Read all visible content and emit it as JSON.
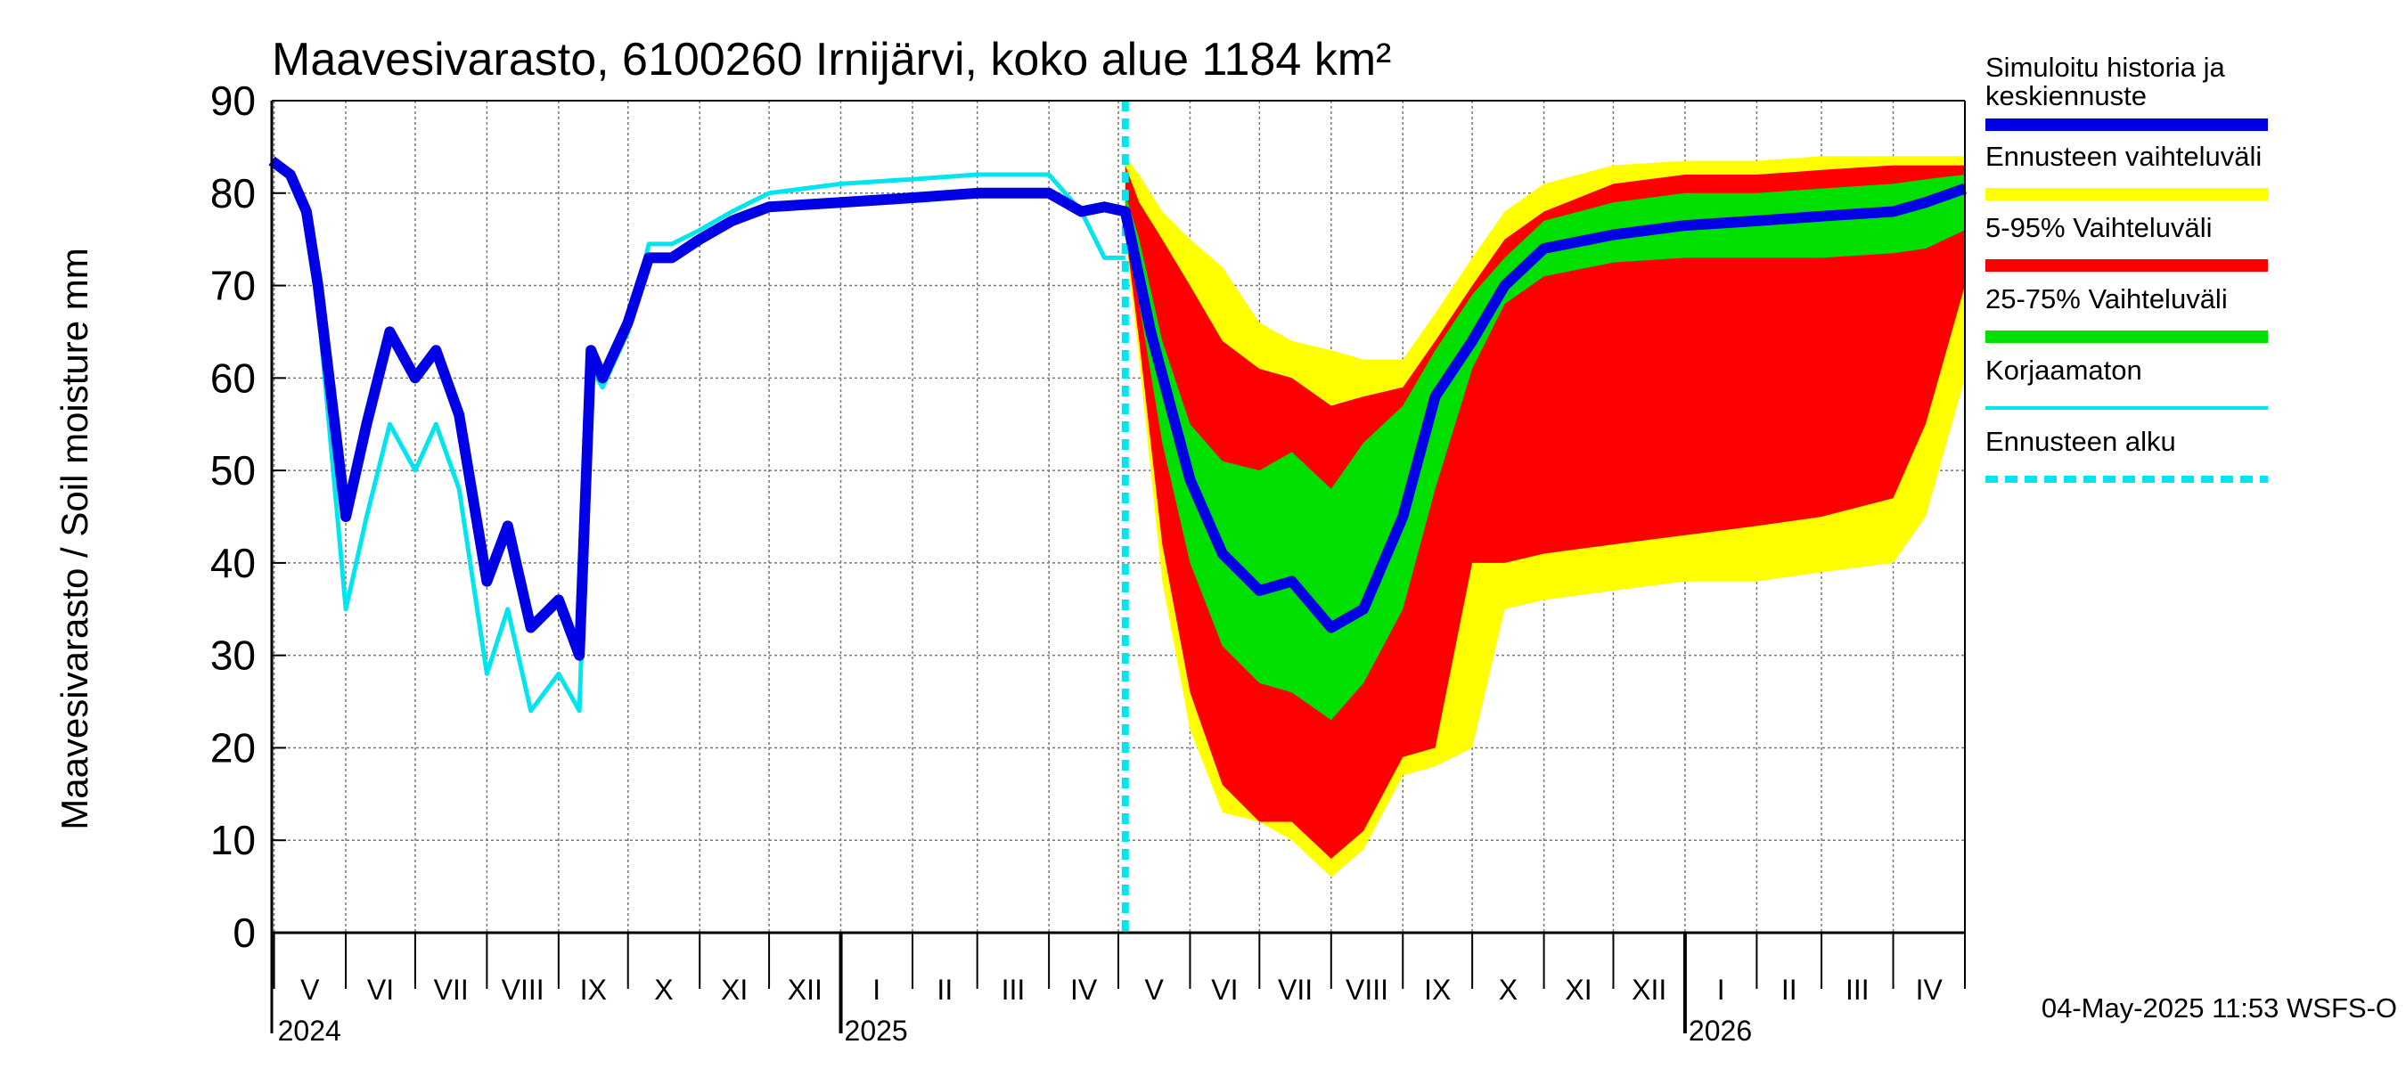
{
  "chart_data": {
    "type": "area",
    "title": "Maavesivarasto, 6100260 Irnijärvi, koko alue 1184 km²",
    "ylabel": "Maavesivarasto / Soil moisture   mm",
    "ylim": [
      0,
      90
    ],
    "yticks": [
      0,
      10,
      20,
      30,
      40,
      50,
      60,
      70,
      80,
      90
    ],
    "xlim": [
      "2024-04-30",
      "2026-05-02"
    ],
    "grid": true,
    "forecast_start": "2025-05-04",
    "months": [
      {
        "label": "V",
        "start": "2024-05-01"
      },
      {
        "label": "VI",
        "start": "2024-06-01"
      },
      {
        "label": "VII",
        "start": "2024-07-01"
      },
      {
        "label": "VIII",
        "start": "2024-08-01"
      },
      {
        "label": "IX",
        "start": "2024-09-01"
      },
      {
        "label": "X",
        "start": "2024-10-01"
      },
      {
        "label": "XI",
        "start": "2024-11-01"
      },
      {
        "label": "XII",
        "start": "2024-12-01"
      },
      {
        "label": "I",
        "start": "2025-01-01"
      },
      {
        "label": "II",
        "start": "2025-02-01"
      },
      {
        "label": "III",
        "start": "2025-03-01"
      },
      {
        "label": "IV",
        "start": "2025-04-01"
      },
      {
        "label": "V",
        "start": "2025-05-01"
      },
      {
        "label": "VI",
        "start": "2025-06-01"
      },
      {
        "label": "VII",
        "start": "2025-07-01"
      },
      {
        "label": "VIII",
        "start": "2025-08-01"
      },
      {
        "label": "IX",
        "start": "2025-09-01"
      },
      {
        "label": "X",
        "start": "2025-10-01"
      },
      {
        "label": "XI",
        "start": "2025-11-01"
      },
      {
        "label": "XII",
        "start": "2025-12-01"
      },
      {
        "label": "I",
        "start": "2026-01-01"
      },
      {
        "label": "II",
        "start": "2026-02-01"
      },
      {
        "label": "III",
        "start": "2026-03-01"
      },
      {
        "label": "IV",
        "start": "2026-04-01"
      }
    ],
    "year_labels": [
      {
        "label": "2024",
        "date": "2024-05-01"
      },
      {
        "label": "2025",
        "date": "2025-01-01"
      },
      {
        "label": "2026",
        "date": "2026-01-01"
      }
    ],
    "series": [
      {
        "name": "Ennusteen vaihteluväli",
        "color": "#ffff00",
        "kind": "band",
        "x": [
          "2025-05-04",
          "2025-05-10",
          "2025-05-20",
          "2025-06-01",
          "2025-06-15",
          "2025-07-01",
          "2025-07-15",
          "2025-08-01",
          "2025-08-15",
          "2025-09-01",
          "2025-09-15",
          "2025-10-01",
          "2025-10-15",
          "2025-11-01",
          "2025-12-01",
          "2026-01-01",
          "2026-02-01",
          "2026-03-01",
          "2026-04-01",
          "2026-04-15",
          "2026-05-02"
        ],
        "upper": [
          84,
          82,
          78,
          75,
          72,
          66,
          64,
          63,
          62,
          62,
          67,
          73,
          78,
          81,
          83,
          83.5,
          83.5,
          84,
          84,
          84,
          84
        ],
        "lower": [
          75,
          62,
          38,
          22,
          13,
          12,
          10,
          6,
          9,
          17,
          18,
          20,
          35,
          36,
          37,
          38,
          38,
          39,
          40,
          45,
          60
        ]
      },
      {
        "name": "5-95% Vaihteluväli",
        "color": "#ff0000",
        "kind": "band",
        "x": [
          "2025-05-04",
          "2025-05-10",
          "2025-05-20",
          "2025-06-01",
          "2025-06-15",
          "2025-07-01",
          "2025-07-15",
          "2025-08-01",
          "2025-08-15",
          "2025-09-01",
          "2025-09-15",
          "2025-10-01",
          "2025-10-15",
          "2025-11-01",
          "2025-12-01",
          "2026-01-01",
          "2026-02-01",
          "2026-03-01",
          "2026-04-01",
          "2026-04-15",
          "2026-05-02"
        ],
        "upper": [
          83,
          79,
          75,
          70,
          64,
          61,
          60,
          57,
          58,
          59,
          64,
          70,
          75,
          78,
          81,
          82,
          82,
          82.5,
          83,
          83,
          83
        ],
        "lower": [
          76,
          64,
          42,
          26,
          16,
          12,
          12,
          8,
          11,
          19,
          20,
          40,
          40,
          41,
          42,
          43,
          44,
          45,
          47,
          55,
          70
        ]
      },
      {
        "name": "25-75% Vaihteluväli",
        "color": "#00e000",
        "kind": "band",
        "x": [
          "2025-05-04",
          "2025-05-10",
          "2025-05-20",
          "2025-06-01",
          "2025-06-15",
          "2025-07-01",
          "2025-07-15",
          "2025-08-01",
          "2025-08-15",
          "2025-09-01",
          "2025-09-15",
          "2025-10-01",
          "2025-10-15",
          "2025-11-01",
          "2025-12-01",
          "2026-01-01",
          "2026-02-01",
          "2026-03-01",
          "2026-04-01",
          "2026-04-15",
          "2026-05-02"
        ],
        "upper": [
          80,
          75,
          64,
          55,
          51,
          50,
          52,
          48,
          53,
          57,
          63,
          69,
          73,
          77,
          79,
          80,
          80,
          80.5,
          81,
          81.5,
          82
        ],
        "lower": [
          77,
          68,
          53,
          40,
          31,
          27,
          26,
          23,
          27,
          35,
          48,
          61,
          68,
          71,
          72.5,
          73,
          73,
          73,
          73.5,
          74,
          76
        ]
      },
      {
        "name": "Simuloitu historia ja keskiennuste",
        "color": "#0000e6",
        "kind": "line",
        "x": [
          "2024-04-30",
          "2024-05-08",
          "2024-05-15",
          "2024-05-20",
          "2024-06-01",
          "2024-06-10",
          "2024-06-20",
          "2024-07-01",
          "2024-07-10",
          "2024-07-20",
          "2024-08-01",
          "2024-08-10",
          "2024-08-20",
          "2024-09-01",
          "2024-09-10",
          "2024-09-15",
          "2024-09-20",
          "2024-10-01",
          "2024-10-10",
          "2024-10-20",
          "2024-11-01",
          "2024-11-15",
          "2024-12-01",
          "2025-01-01",
          "2025-02-01",
          "2025-03-01",
          "2025-04-01",
          "2025-04-15",
          "2025-04-25",
          "2025-05-04",
          "2025-05-15",
          "2025-06-01",
          "2025-06-15",
          "2025-07-01",
          "2025-07-15",
          "2025-08-01",
          "2025-08-15",
          "2025-09-01",
          "2025-09-15",
          "2025-10-01",
          "2025-10-15",
          "2025-11-01",
          "2025-12-01",
          "2026-01-01",
          "2026-02-01",
          "2026-03-01",
          "2026-04-01",
          "2026-04-15",
          "2026-05-02"
        ],
        "y": [
          83.5,
          82,
          78,
          70,
          45,
          55,
          65,
          60,
          63,
          56,
          38,
          44,
          33,
          36,
          30,
          63,
          60,
          66,
          73,
          73,
          75,
          77,
          78.5,
          79,
          79.5,
          80,
          80,
          78,
          78.5,
          78,
          65,
          49,
          41,
          37,
          38,
          33,
          35,
          45,
          58,
          64,
          70,
          74,
          75.5,
          76.5,
          77,
          77.5,
          78,
          79,
          80.5
        ]
      },
      {
        "name": "Korjaamaton",
        "color": "#00e5ee",
        "kind": "line",
        "x": [
          "2024-04-30",
          "2024-05-08",
          "2024-05-15",
          "2024-05-20",
          "2024-06-01",
          "2024-06-10",
          "2024-06-20",
          "2024-07-01",
          "2024-07-10",
          "2024-07-20",
          "2024-08-01",
          "2024-08-10",
          "2024-08-20",
          "2024-09-01",
          "2024-09-10",
          "2024-09-15",
          "2024-09-20",
          "2024-10-01",
          "2024-10-10",
          "2024-10-20",
          "2024-11-01",
          "2024-11-15",
          "2024-12-01",
          "2025-01-01",
          "2025-02-01",
          "2025-03-01",
          "2025-04-01",
          "2025-04-15",
          "2025-04-25",
          "2025-05-04"
        ],
        "y": [
          83.5,
          82,
          78,
          68,
          35,
          45,
          55,
          50,
          55,
          48,
          28,
          35,
          24,
          28,
          24,
          61,
          59,
          65,
          74.5,
          74.5,
          76,
          78,
          80,
          81,
          81.5,
          82,
          82,
          78,
          73,
          73
        ]
      },
      {
        "name": "Ennusteen alku",
        "color": "#00e5ee",
        "kind": "marker_line"
      }
    ]
  },
  "legend": {
    "items": [
      {
        "label": "Simuloitu historia ja keskiennuste",
        "color": "#0000e6",
        "style": "thick"
      },
      {
        "label": "Ennusteen vaihteluväli",
        "color": "#ffff00",
        "style": "thick"
      },
      {
        "label": "5-95% Vaihteluväli",
        "color": "#ff0000",
        "style": "thick"
      },
      {
        "label": "25-75% Vaihteluväli",
        "color": "#00e000",
        "style": "thick"
      },
      {
        "label": "Korjaamaton",
        "color": "#00e5ee",
        "style": "thin"
      },
      {
        "label": "Ennusteen alku",
        "color": "#00e5ee",
        "style": "dashed"
      }
    ]
  },
  "footer": "04-May-2025 11:53 WSFS-O"
}
